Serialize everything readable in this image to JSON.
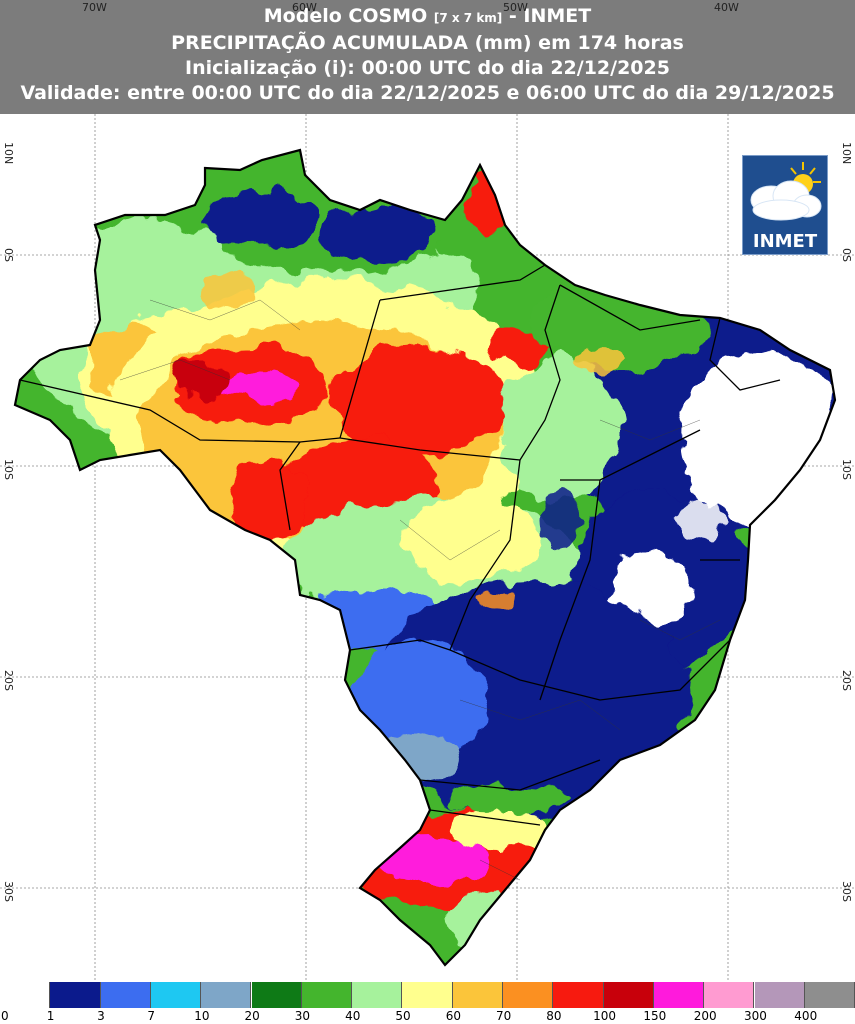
{
  "header": {
    "line1_pre": "Modelo COSMO ",
    "line1_res": "[7 x 7 km]",
    "line1_post": " - INMET",
    "line2": "PRECIPITAÇÃO ACUMULADA (mm) em 174 horas",
    "line3": "Inicialização (i): 00:00 UTC do dia 22/12/2025",
    "line4": "Validade: entre 00:00 UTC do dia 22/12/2025 e 06:00 UTC do dia 29/12/2025"
  },
  "axes": {
    "lon_labels": [
      "70W",
      "60W",
      "50W",
      "40W"
    ],
    "lat_labels": [
      "10N",
      "0S",
      "10S",
      "20S",
      "30S"
    ]
  },
  "logo": {
    "text": "INMET",
    "icon": "sun-cloud-icon"
  },
  "colorbar": {
    "thresholds": [
      "0",
      "1",
      "3",
      "7",
      "10",
      "20",
      "30",
      "40",
      "50",
      "60",
      "70",
      "80",
      "100",
      "150",
      "200",
      "300",
      "400"
    ],
    "colors": [
      "#ffffff",
      "#0b1a8c",
      "#3c6df0",
      "#1ec8f2",
      "#7ea6c8",
      "#0e7a16",
      "#44b52d",
      "#a6f29c",
      "#ffff8e",
      "#fbc53a",
      "#fb9021",
      "#f71a0f",
      "#c8000b",
      "#ff1adc",
      "#ff9bd1",
      "#b497b9",
      "#8e8e8e"
    ]
  }
}
